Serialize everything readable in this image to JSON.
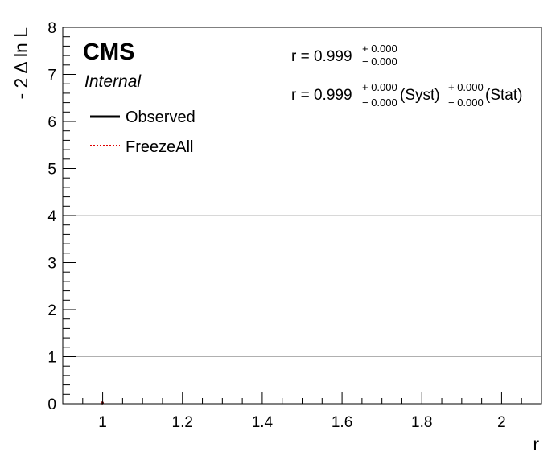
{
  "chart_data": {
    "type": "line",
    "xlabel": "r",
    "ylabel": "- 2 Δ ln L",
    "xlim": [
      0.9,
      2.1
    ],
    "ylim": [
      0,
      8
    ],
    "x_ticks": [
      1,
      1.2,
      1.4,
      1.6,
      1.8,
      2
    ],
    "x_tick_labels": [
      "1",
      "1.2",
      "1.4",
      "1.6",
      "1.8",
      "2"
    ],
    "y_ticks": [
      0,
      1,
      2,
      3,
      4,
      5,
      6,
      7,
      8
    ],
    "y_tick_labels": [
      "0",
      "1",
      "2",
      "3",
      "4",
      "5",
      "6",
      "7",
      "8"
    ],
    "hlines": [
      1,
      4
    ],
    "grid": false,
    "legend_position": "top-left",
    "series": [
      {
        "name": "Observed",
        "style": "solid",
        "color": "#000000",
        "x": [
          0.999
        ],
        "y": [
          0
        ]
      },
      {
        "name": "FreezeAll",
        "style": "dotted",
        "color": "#e00000",
        "x": [
          0.999
        ],
        "y": [
          0
        ]
      }
    ],
    "annotations": {
      "experiment": "CMS",
      "status": "Internal",
      "result1": {
        "prefix": "r = 0.999",
        "up": "+ 0.000",
        "down": "− 0.000"
      },
      "result2": {
        "prefix": "r = 0.999",
        "syst_up": "+ 0.000",
        "syst_down": "− 0.000",
        "syst_label": "(Syst)",
        "stat_up": "+ 0.000",
        "stat_down": "− 0.000",
        "stat_label": "(Stat)"
      }
    }
  }
}
